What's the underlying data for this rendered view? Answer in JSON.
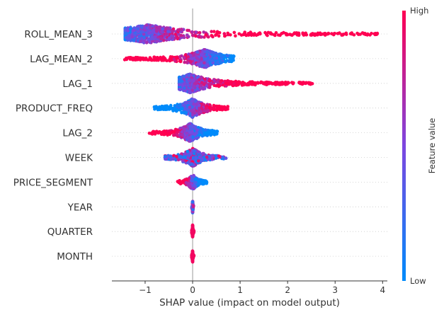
{
  "chart_data": {
    "type": "scatter",
    "subtype": "shap-beeswarm",
    "title": "",
    "xlabel": "SHAP value (impact on model output)",
    "ylabel": "",
    "xlim": [
      -1.7,
      4.1
    ],
    "xticks": [
      -1,
      0,
      1,
      2,
      3,
      4
    ],
    "xtick_labels": [
      "−1",
      "0",
      "1",
      "2",
      "3",
      "4"
    ],
    "zero_line": true,
    "grid": false,
    "colorbar": {
      "title": "Feature value",
      "high_label": "High",
      "low_label": "Low",
      "low_color": "#008bfb",
      "high_color": "#ff0052"
    },
    "features": [
      {
        "name": "ROLL_MEAN_3",
        "min": -1.42,
        "max": 3.92,
        "mode": -0.95,
        "density": "wide",
        "low_side": "negative"
      },
      {
        "name": "LAG_MEAN_2",
        "min": -1.45,
        "max": 0.87,
        "mode": 0.25,
        "density": "wide",
        "low_side": "positive"
      },
      {
        "name": "LAG_1",
        "min": -0.28,
        "max": 2.55,
        "mode": -0.05,
        "density": "wide",
        "low_side": "negative"
      },
      {
        "name": "PRODUCT_FREQ",
        "min": -0.85,
        "max": 0.75,
        "mode": 0.0,
        "density": "medium",
        "low_side": "negative"
      },
      {
        "name": "LAG_2",
        "min": -0.95,
        "max": 0.52,
        "mode": -0.05,
        "density": "medium",
        "low_side": "positive"
      },
      {
        "name": "WEEK",
        "min": -0.58,
        "max": 0.72,
        "mode": 0.0,
        "density": "medium",
        "low_side": "mixed"
      },
      {
        "name": "PRICE_SEGMENT",
        "min": -0.33,
        "max": 0.3,
        "mode": 0.0,
        "density": "narrow",
        "low_side": "positive"
      },
      {
        "name": "YEAR",
        "min": -0.02,
        "max": 0.02,
        "mode": 0.0,
        "density": "line",
        "low_side": "mixed"
      },
      {
        "name": "QUARTER",
        "min": -0.02,
        "max": 0.03,
        "mode": 0.0,
        "density": "line",
        "low_side": "high-only"
      },
      {
        "name": "MONTH",
        "min": -0.02,
        "max": 0.03,
        "mode": 0.0,
        "density": "line",
        "low_side": "high-only"
      }
    ]
  }
}
